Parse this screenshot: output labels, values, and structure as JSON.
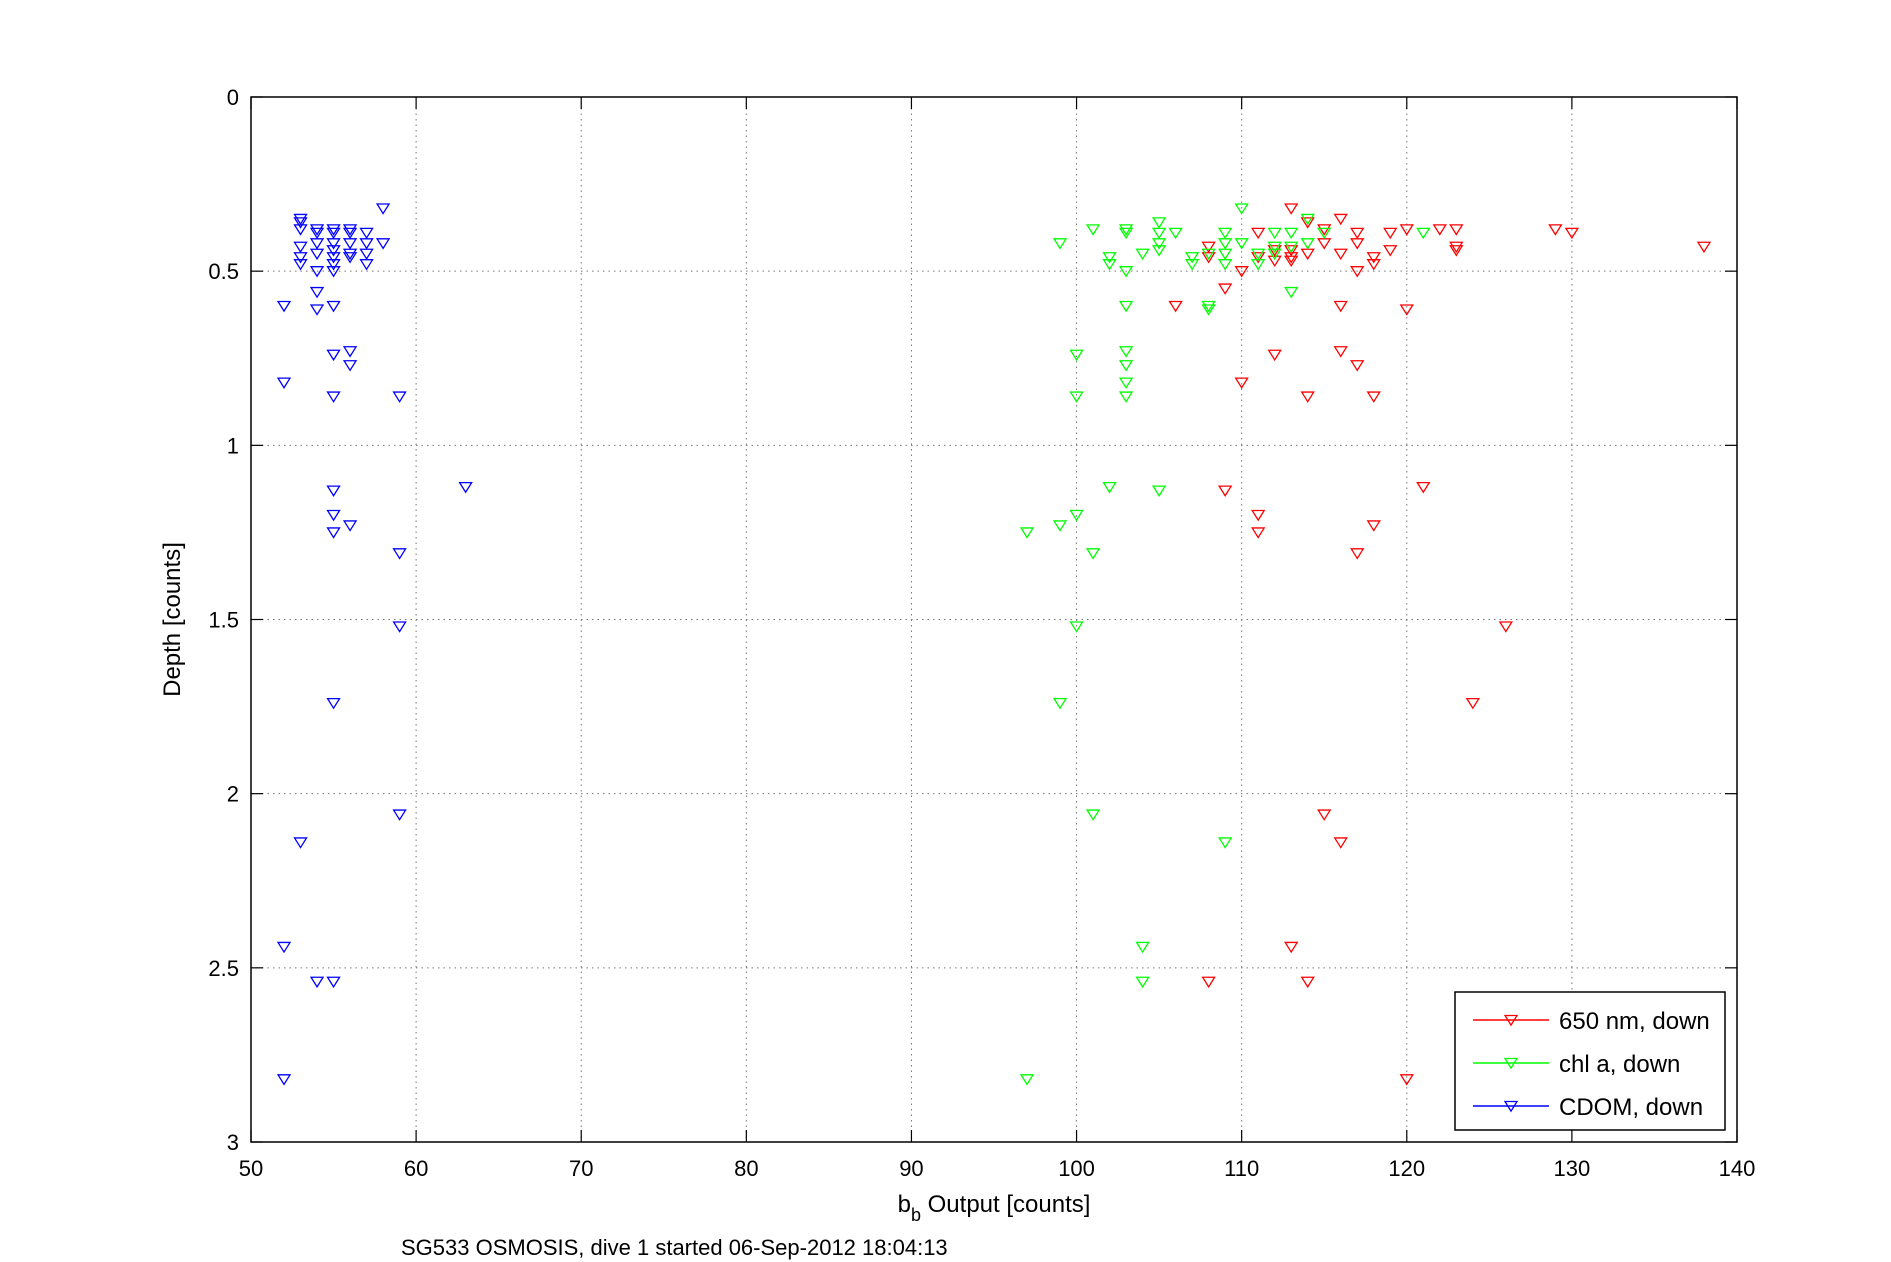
{
  "chart_data": {
    "type": "scatter",
    "xlabel_main": "b",
    "xlabel_sub": "b",
    "xlabel_rest": " Output [counts]",
    "ylabel": "Depth [counts]",
    "caption": "SG533 OSMOSIS, dive 1 started 06-Sep-2012 18:04:13",
    "xlim": [
      50,
      140
    ],
    "ylim": [
      0,
      3
    ],
    "y_reversed": true,
    "grid": true,
    "legend_position": "bottom-right",
    "marker": "down-triangle",
    "x_ticks": [
      "50",
      "60",
      "70",
      "80",
      "90",
      "100",
      "110",
      "120",
      "130",
      "140"
    ],
    "y_ticks": [
      "0",
      "0.5",
      "1",
      "1.5",
      "2",
      "2.5",
      "3"
    ],
    "series": [
      {
        "name": "650 nm, down",
        "color": "#ff0000",
        "points": [
          [
            113,
            0.32
          ],
          [
            116,
            0.35
          ],
          [
            114,
            0.36
          ],
          [
            115,
            0.38
          ],
          [
            111,
            0.39
          ],
          [
            117,
            0.39
          ],
          [
            119,
            0.39
          ],
          [
            120,
            0.38
          ],
          [
            122,
            0.38
          ],
          [
            123,
            0.38
          ],
          [
            129,
            0.38
          ],
          [
            130,
            0.39
          ],
          [
            138,
            0.43
          ],
          [
            108,
            0.43
          ],
          [
            112,
            0.44
          ],
          [
            113,
            0.44
          ],
          [
            115,
            0.42
          ],
          [
            117,
            0.42
          ],
          [
            119,
            0.44
          ],
          [
            123,
            0.43
          ],
          [
            123,
            0.44
          ],
          [
            108,
            0.46
          ],
          [
            111,
            0.46
          ],
          [
            112,
            0.47
          ],
          [
            113,
            0.47
          ],
          [
            113,
            0.46
          ],
          [
            114,
            0.45
          ],
          [
            116,
            0.45
          ],
          [
            118,
            0.46
          ],
          [
            118,
            0.48
          ],
          [
            117,
            0.5
          ],
          [
            110,
            0.5
          ],
          [
            109,
            0.55
          ],
          [
            106,
            0.6
          ],
          [
            116,
            0.6
          ],
          [
            120,
            0.61
          ],
          [
            112,
            0.74
          ],
          [
            116,
            0.73
          ],
          [
            117,
            0.77
          ],
          [
            110,
            0.82
          ],
          [
            114,
            0.86
          ],
          [
            118,
            0.86
          ],
          [
            109,
            1.13
          ],
          [
            121,
            1.12
          ],
          [
            111,
            1.2
          ],
          [
            111,
            1.25
          ],
          [
            118,
            1.23
          ],
          [
            117,
            1.31
          ],
          [
            126,
            1.52
          ],
          [
            124,
            1.74
          ],
          [
            115,
            2.06
          ],
          [
            116,
            2.14
          ],
          [
            113,
            2.44
          ],
          [
            108,
            2.54
          ],
          [
            114,
            2.54
          ],
          [
            120,
            2.82
          ]
        ]
      },
      {
        "name": "chl a, down",
        "color": "#00ff00",
        "points": [
          [
            110,
            0.32
          ],
          [
            114,
            0.35
          ],
          [
            105,
            0.36
          ],
          [
            101,
            0.38
          ],
          [
            103,
            0.38
          ],
          [
            103,
            0.39
          ],
          [
            105,
            0.39
          ],
          [
            106,
            0.39
          ],
          [
            109,
            0.39
          ],
          [
            112,
            0.39
          ],
          [
            113,
            0.39
          ],
          [
            115,
            0.39
          ],
          [
            121,
            0.39
          ],
          [
            99,
            0.42
          ],
          [
            105,
            0.42
          ],
          [
            109,
            0.42
          ],
          [
            110,
            0.42
          ],
          [
            112,
            0.43
          ],
          [
            113,
            0.43
          ],
          [
            114,
            0.42
          ],
          [
            102,
            0.46
          ],
          [
            104,
            0.45
          ],
          [
            105,
            0.44
          ],
          [
            107,
            0.46
          ],
          [
            108,
            0.45
          ],
          [
            109,
            0.45
          ],
          [
            111,
            0.45
          ],
          [
            112,
            0.45
          ],
          [
            102,
            0.48
          ],
          [
            103,
            0.5
          ],
          [
            107,
            0.48
          ],
          [
            109,
            0.48
          ],
          [
            111,
            0.48
          ],
          [
            113,
            0.56
          ],
          [
            103,
            0.6
          ],
          [
            108,
            0.6
          ],
          [
            108,
            0.61
          ],
          [
            100,
            0.74
          ],
          [
            103,
            0.73
          ],
          [
            103,
            0.77
          ],
          [
            103,
            0.82
          ],
          [
            100,
            0.86
          ],
          [
            103,
            0.86
          ],
          [
            102,
            1.12
          ],
          [
            105,
            1.13
          ],
          [
            100,
            1.2
          ],
          [
            99,
            1.23
          ],
          [
            97,
            1.25
          ],
          [
            101,
            1.31
          ],
          [
            100,
            1.52
          ],
          [
            99,
            1.74
          ],
          [
            101,
            2.06
          ],
          [
            109,
            2.14
          ],
          [
            104,
            2.44
          ],
          [
            104,
            2.54
          ],
          [
            97,
            2.82
          ]
        ]
      },
      {
        "name": "CDOM, down",
        "color": "#0000ff",
        "points": [
          [
            58,
            0.32
          ],
          [
            53,
            0.35
          ],
          [
            53,
            0.36
          ],
          [
            53,
            0.38
          ],
          [
            54,
            0.38
          ],
          [
            55,
            0.38
          ],
          [
            56,
            0.38
          ],
          [
            57,
            0.39
          ],
          [
            54,
            0.39
          ],
          [
            55,
            0.39
          ],
          [
            56,
            0.39
          ],
          [
            53,
            0.43
          ],
          [
            55,
            0.42
          ],
          [
            55,
            0.44
          ],
          [
            56,
            0.42
          ],
          [
            57,
            0.42
          ],
          [
            54,
            0.42
          ],
          [
            58,
            0.42
          ],
          [
            53,
            0.46
          ],
          [
            55,
            0.46
          ],
          [
            56,
            0.46
          ],
          [
            56,
            0.45
          ],
          [
            57,
            0.45
          ],
          [
            54,
            0.45
          ],
          [
            53,
            0.48
          ],
          [
            55,
            0.48
          ],
          [
            57,
            0.48
          ],
          [
            54,
            0.5
          ],
          [
            55,
            0.5
          ],
          [
            54,
            0.56
          ],
          [
            52,
            0.6
          ],
          [
            55,
            0.6
          ],
          [
            54,
            0.61
          ],
          [
            55,
            0.74
          ],
          [
            56,
            0.73
          ],
          [
            56,
            0.77
          ],
          [
            52,
            0.82
          ],
          [
            55,
            0.86
          ],
          [
            59,
            0.86
          ],
          [
            63,
            1.12
          ],
          [
            55,
            1.13
          ],
          [
            55,
            1.2
          ],
          [
            56,
            1.23
          ],
          [
            55,
            1.25
          ],
          [
            59,
            1.31
          ],
          [
            59,
            1.52
          ],
          [
            55,
            1.74
          ],
          [
            59,
            2.06
          ],
          [
            53,
            2.14
          ],
          [
            52,
            2.44
          ],
          [
            54,
            2.54
          ],
          [
            55,
            2.54
          ],
          [
            52,
            2.82
          ]
        ]
      }
    ]
  }
}
